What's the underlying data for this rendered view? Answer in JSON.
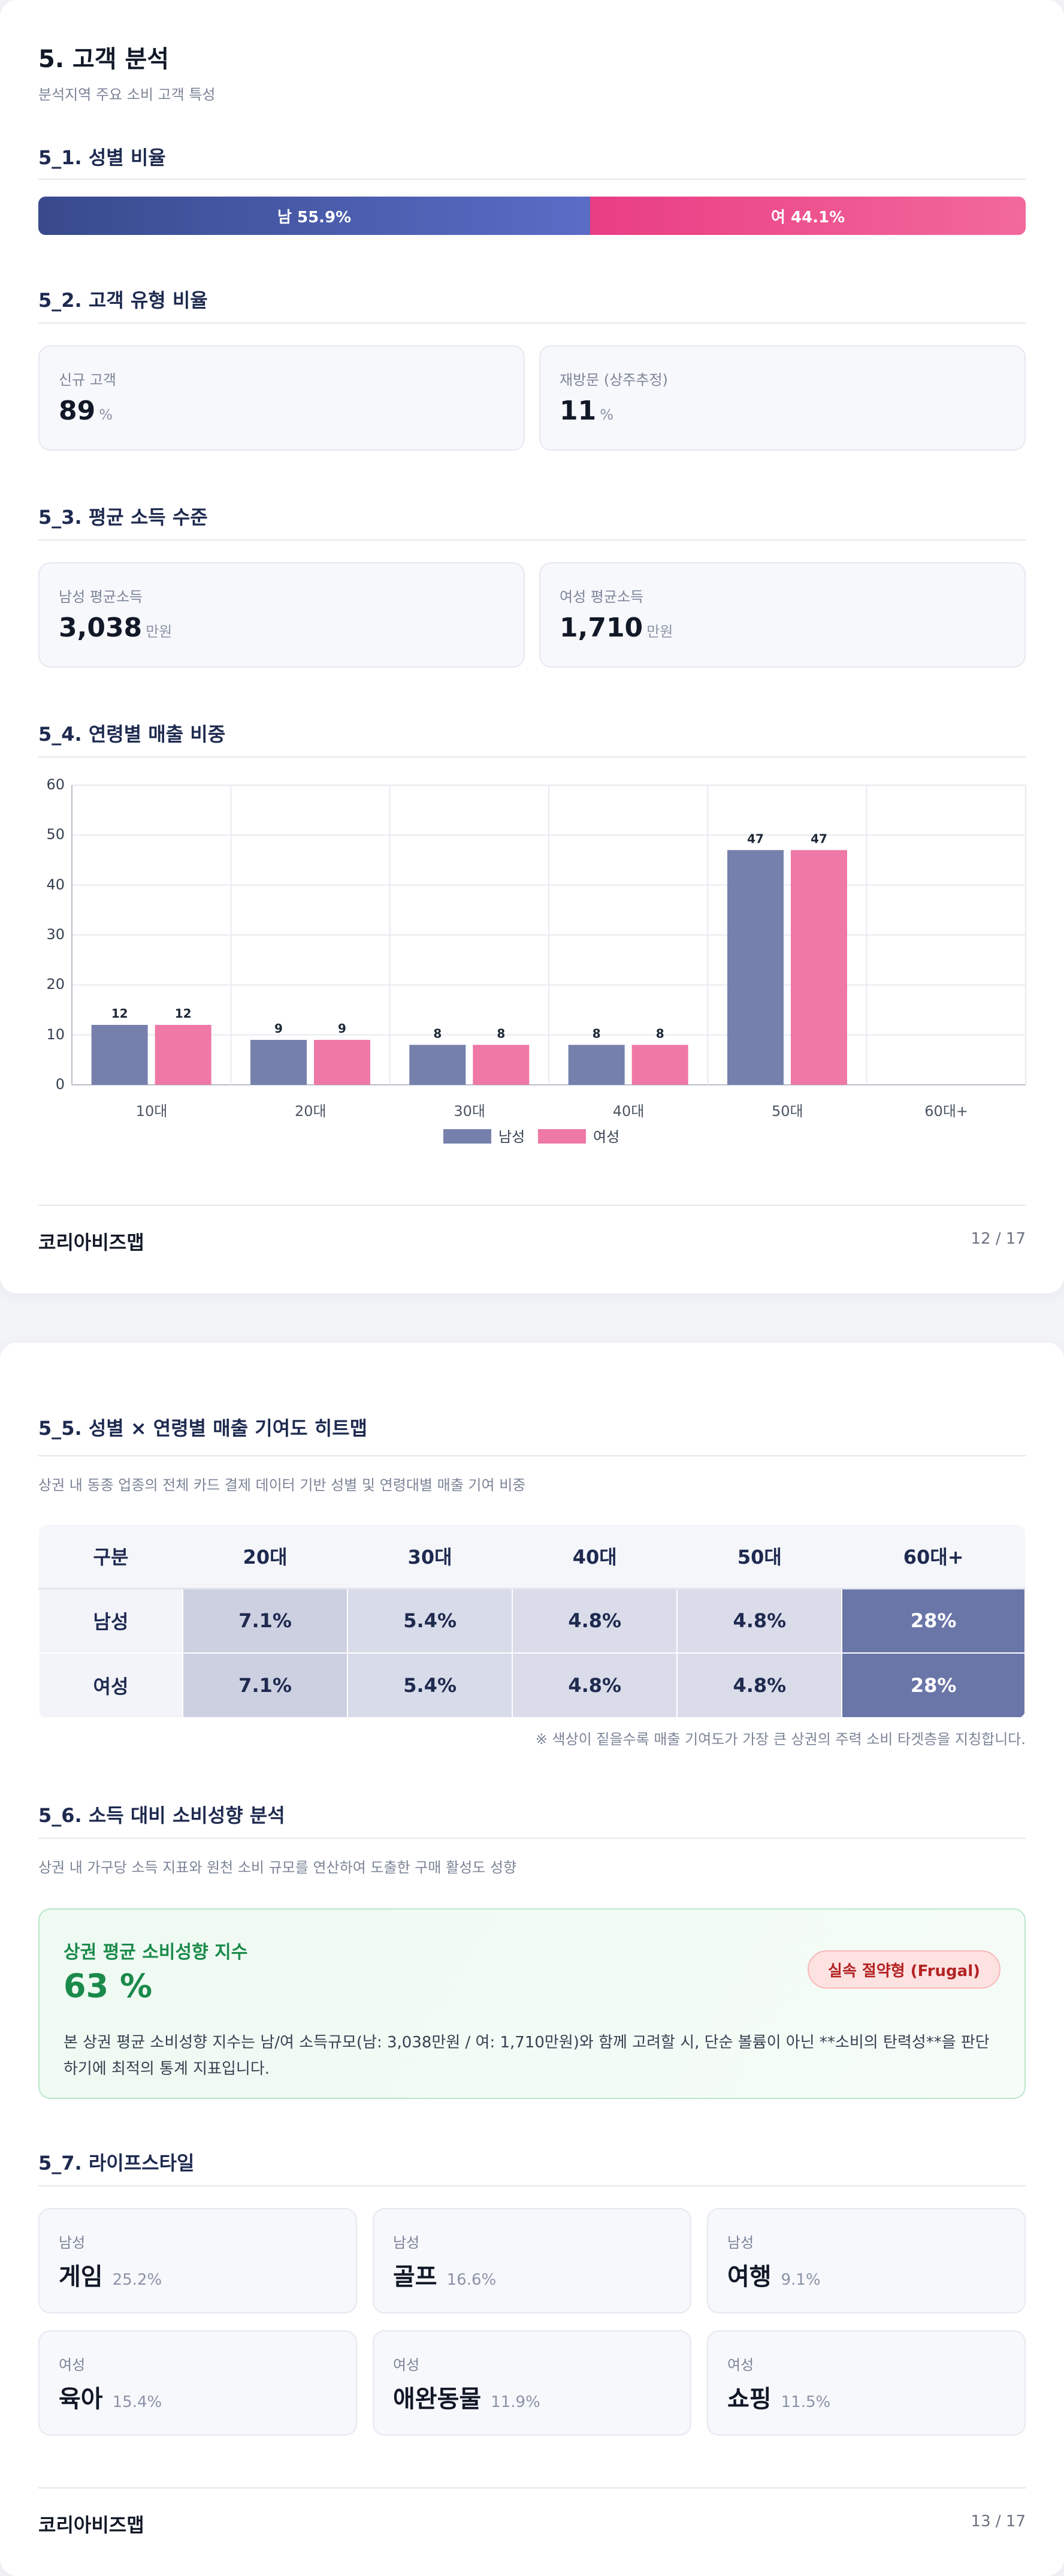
{
  "page1": {
    "title": "5. 고객 분석",
    "subtitle": "분석지역 주요 소비 고객 특성",
    "s1": {
      "title": "5_1. 성별 비율",
      "male_label": "남 55.9%",
      "female_label": "여 44.1%",
      "male_pct": 55.9,
      "female_pct": 44.1
    },
    "s2": {
      "title": "5_2. 고객 유형 비율",
      "cards": [
        {
          "label": "신규 고객",
          "value": "89",
          "unit": "%"
        },
        {
          "label": "재방문 (상주추정)",
          "value": "11",
          "unit": "%"
        }
      ]
    },
    "s3": {
      "title": "5_3. 평균 소득 수준",
      "cards": [
        {
          "label": "남성 평균소득",
          "value": "3,038",
          "unit": "만원"
        },
        {
          "label": "여성 평균소득",
          "value": "1,710",
          "unit": "만원"
        }
      ]
    },
    "s4": {
      "title": "5_4. 연령별 매출 비중"
    },
    "footer": {
      "brand": "코리아비즈맵",
      "page": "12 / 17"
    }
  },
  "chart_data": {
    "type": "bar",
    "categories": [
      "10대",
      "20대",
      "30대",
      "40대",
      "50대",
      "60대+"
    ],
    "series": [
      {
        "name": "남성",
        "values": [
          12,
          9,
          8,
          8,
          47,
          0
        ],
        "color": "#7680ad"
      },
      {
        "name": "여성",
        "values": [
          12,
          9,
          8,
          8,
          47,
          0
        ],
        "color": "#ee78a6"
      }
    ],
    "data_labels": [
      [
        "12",
        "9",
        "8",
        "8",
        "47",
        ""
      ],
      [
        "12",
        "9",
        "8",
        "8",
        "47",
        ""
      ]
    ],
    "ylim": [
      0,
      60
    ],
    "yticks": [
      "0",
      "10",
      "20",
      "30",
      "40",
      "50",
      "60"
    ],
    "grid": true,
    "legend": "bottom-center"
  },
  "page2": {
    "s5": {
      "title": "5_5. 성별 × 연령별 매출 기여도 히트맵",
      "desc": "상권 내 동종 업종의 전체 카드 결제 데이터 기반 성별 및 연령대별 매출 기여 비중",
      "header": [
        "구분",
        "20대",
        "30대",
        "40대",
        "50대",
        "60대+"
      ],
      "rows": [
        {
          "label": "남성",
          "cells": [
            "7.1%",
            "5.4%",
            "4.8%",
            "4.8%",
            "28%"
          ]
        },
        {
          "label": "여성",
          "cells": [
            "7.1%",
            "5.4%",
            "4.8%",
            "4.8%",
            "28%"
          ]
        }
      ],
      "note": "※ 색상이 짙을수록 매출 기여도가 가장 큰 상권의 주력 소비 타겟층을 지칭합니다."
    },
    "s6": {
      "title": "5_6. 소득 대비 소비성향 분석",
      "desc": "상권 내 가구당 소득 지표와 원천 소비 규모를 연산하여 도출한 구매 활성도 성향",
      "index_title": "상권 평균 소비성향 지수",
      "index_value": "63 %",
      "badge": "실속 절약형 (Frugal)",
      "body": "본 상권 평균 소비성향 지수는 남/여 소득규모(남: 3,038만원 / 여: 1,710만원)와 함께 고려할 시, 단순 볼륨이 아닌 **소비의 탄력성**을 판단하기에 최적의 통계 지표입니다."
    },
    "s7": {
      "title": "5_7. 라이프스타일",
      "items": [
        {
          "gender": "남성",
          "name": "게임",
          "pct": "25.2%"
        },
        {
          "gender": "남성",
          "name": "골프",
          "pct": "16.6%"
        },
        {
          "gender": "남성",
          "name": "여행",
          "pct": "9.1%"
        },
        {
          "gender": "여성",
          "name": "육아",
          "pct": "15.4%"
        },
        {
          "gender": "여성",
          "name": "애완동물",
          "pct": "11.9%"
        },
        {
          "gender": "여성",
          "name": "쇼핑",
          "pct": "11.5%"
        }
      ]
    },
    "footer": {
      "brand": "코리아비즈맵",
      "page": "13 / 17"
    }
  }
}
